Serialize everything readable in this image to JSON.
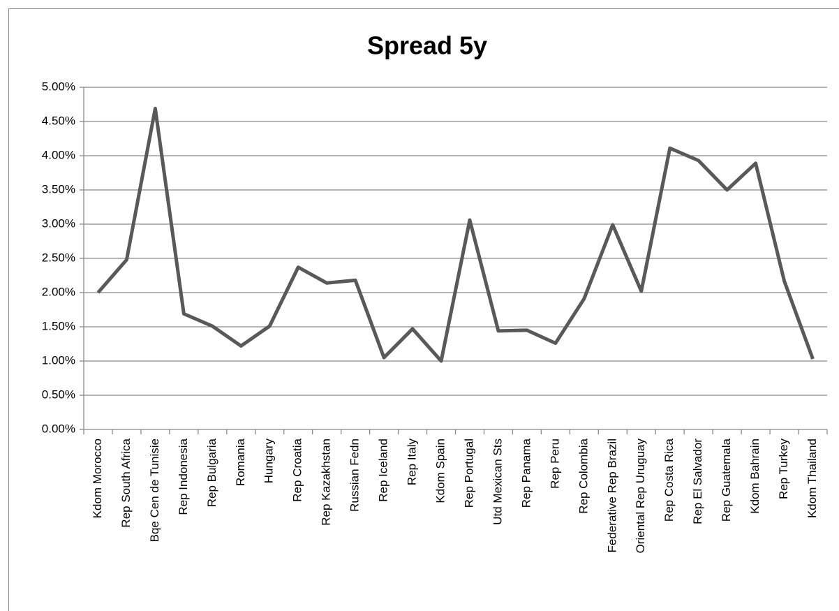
{
  "chart_data": {
    "type": "line",
    "title": "Spread 5y",
    "categories": [
      "Kdom Morocco",
      "Rep South Africa",
      "Bqe Cen de Tunisie",
      "Rep Indonesia",
      "Rep Bulgaria",
      "Romania",
      "Hungary",
      "Rep Croatia",
      "Rep Kazakhstan",
      "Russian Fedn",
      "Rep Iceland",
      "Rep Italy",
      "Kdom Spain",
      "Rep Portugal",
      "Utd Mexican Sts",
      "Rep Panama",
      "Rep Peru",
      "Rep Colombia",
      "Federative Rep Brazil",
      "Oriental Rep Uruguay",
      "Rep Costa Rica",
      "Rep El Salvador",
      "Rep Guatemala",
      "Kdom Bahrain",
      "Rep Turkey",
      "Kdom Thailand"
    ],
    "values": [
      2.0,
      2.48,
      4.69,
      1.69,
      1.51,
      1.22,
      1.51,
      2.37,
      2.14,
      2.18,
      1.05,
      1.47,
      1.0,
      3.06,
      1.44,
      1.45,
      1.26,
      1.91,
      2.99,
      2.02,
      4.11,
      3.93,
      3.5,
      3.89,
      2.17,
      1.03
    ],
    "color": "#595959",
    "ylim": [
      0,
      5
    ],
    "yticks": [
      {
        "value": 0,
        "label": "0.00%"
      },
      {
        "value": 0.5,
        "label": "0.50%"
      },
      {
        "value": 1,
        "label": "1.00%"
      },
      {
        "value": 1.5,
        "label": "1.50%"
      },
      {
        "value": 2,
        "label": "2.00%"
      },
      {
        "value": 2.5,
        "label": "2.50%"
      },
      {
        "value": 3,
        "label": "3.00%"
      },
      {
        "value": 3.5,
        "label": "3.50%"
      },
      {
        "value": 4,
        "label": "4.00%"
      },
      {
        "value": 4.5,
        "label": "4.50%"
      },
      {
        "value": 5,
        "label": "5.00%"
      }
    ],
    "grid": true
  }
}
